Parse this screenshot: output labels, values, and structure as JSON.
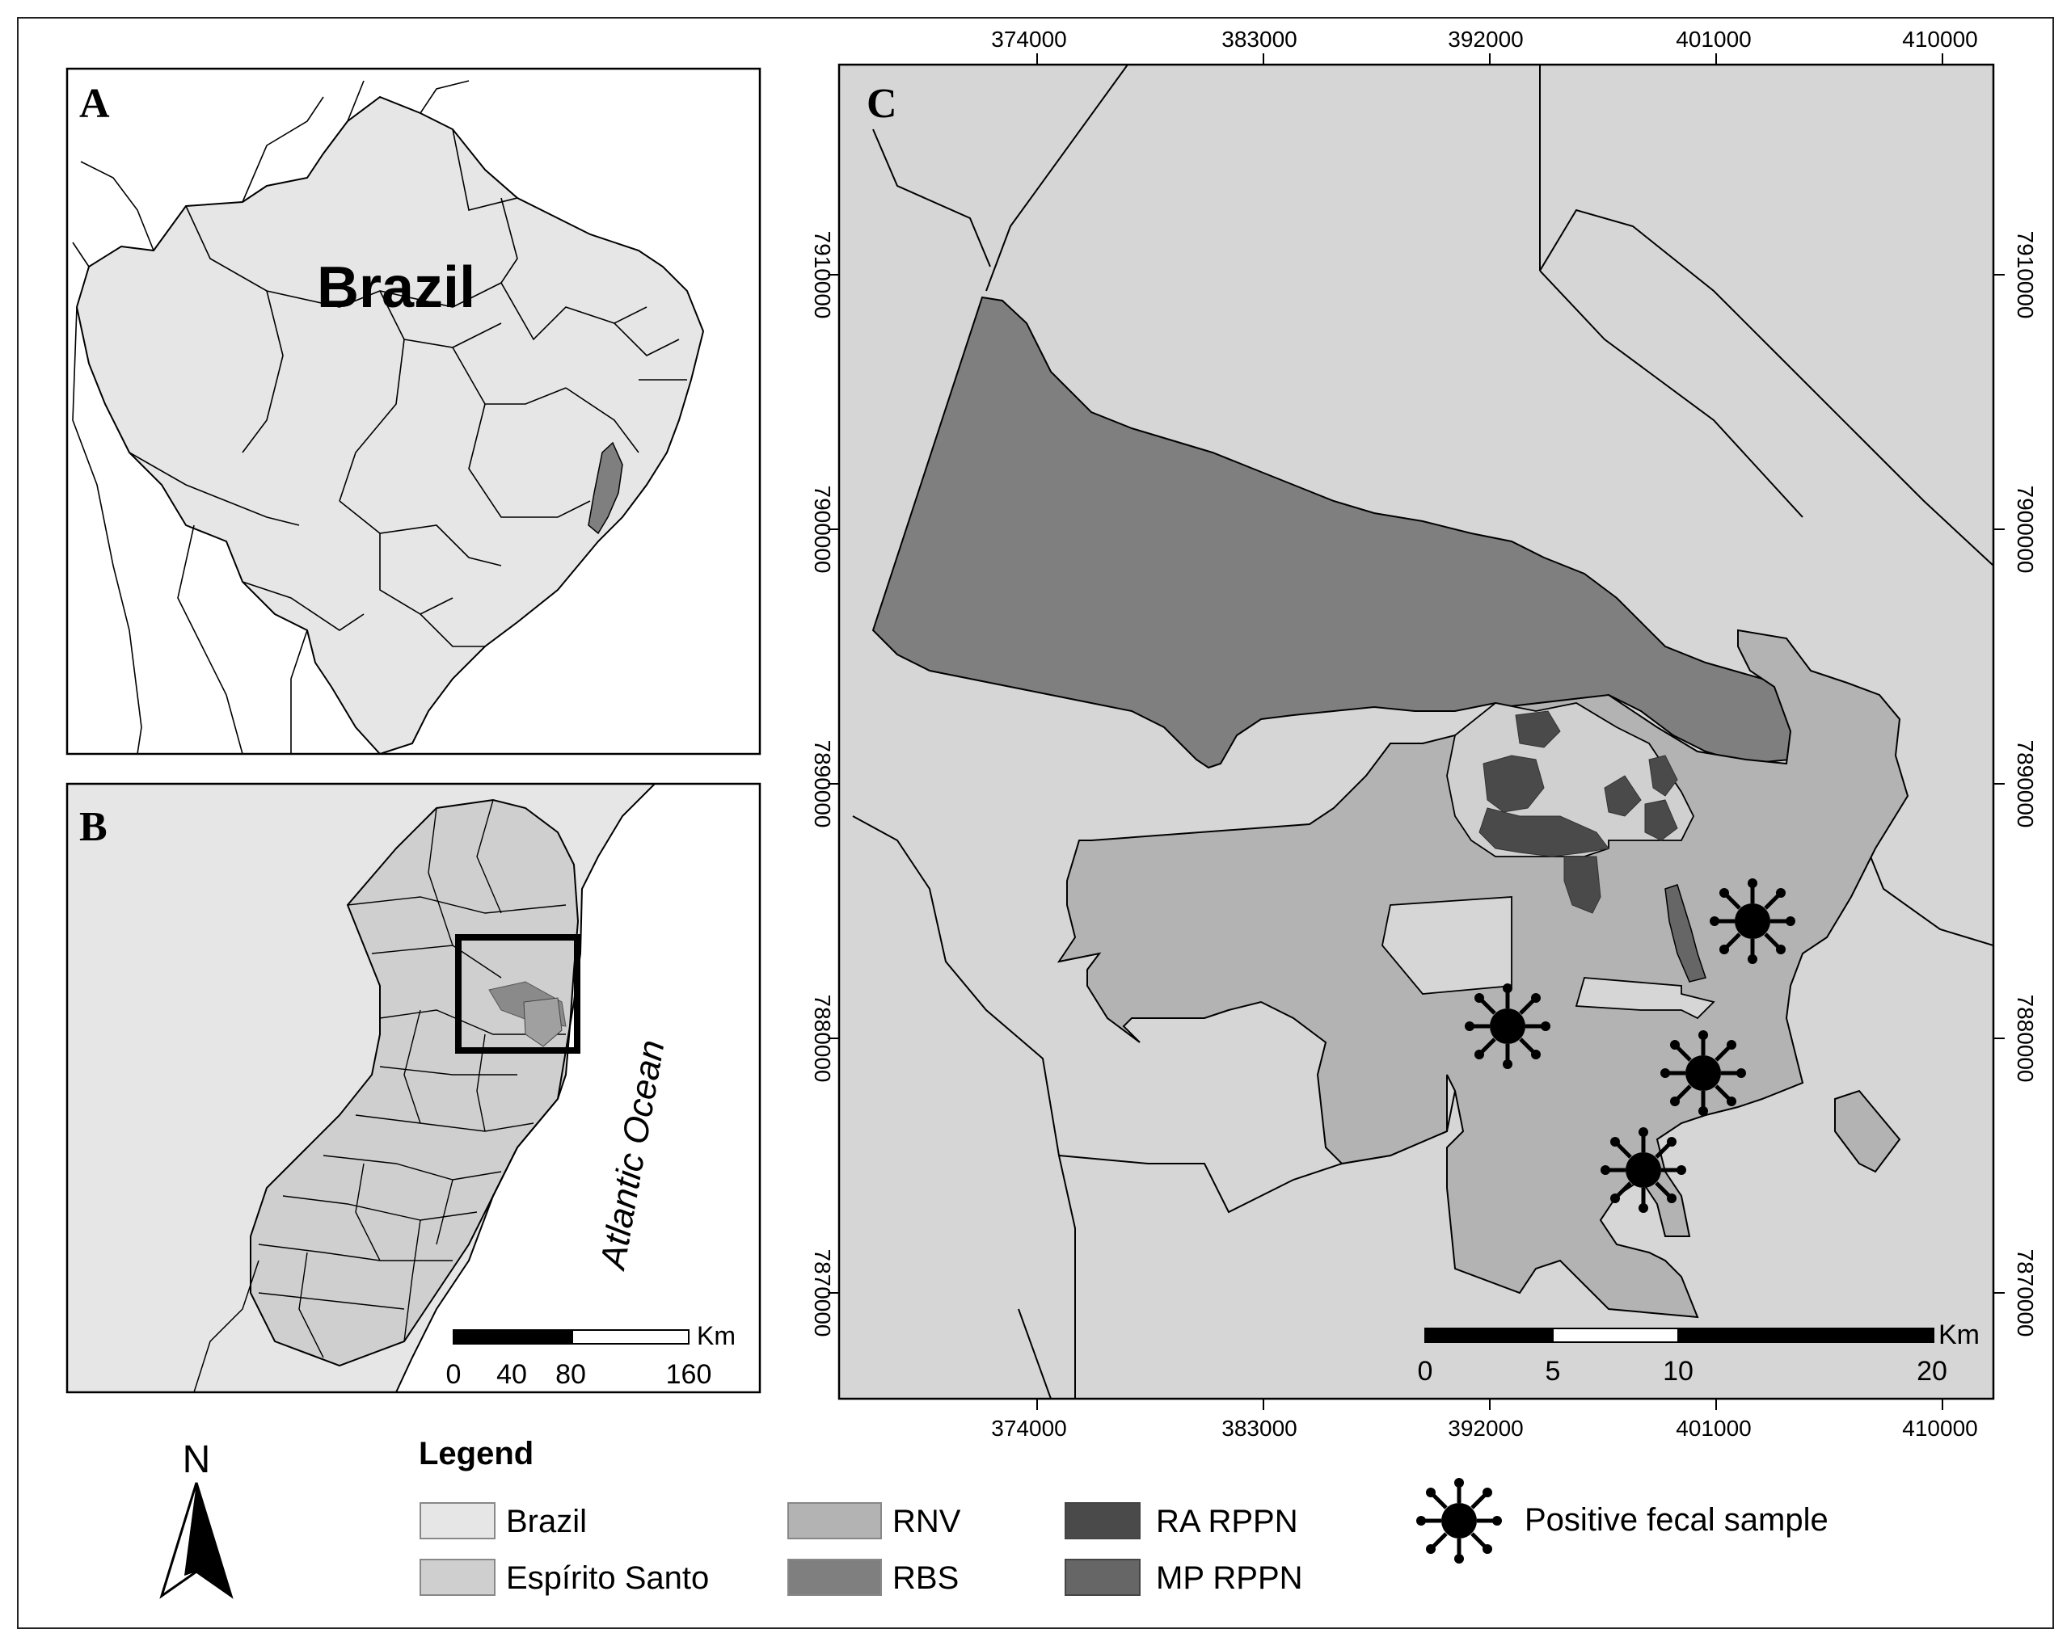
{
  "panels": {
    "a": {
      "letter": "A",
      "country_label": "Brazil"
    },
    "b": {
      "letter": "B",
      "ocean_label": "Atlantic Ocean",
      "scale": {
        "unit": "Km",
        "ticks": [
          "0",
          "40",
          "80",
          "160"
        ]
      }
    },
    "c": {
      "letter": "C",
      "x_ticks": [
        "374000",
        "383000",
        "392000",
        "401000",
        "410000"
      ],
      "y_ticks": [
        "7910000",
        "7900000",
        "7890000",
        "7880000",
        "7870000"
      ],
      "scale": {
        "unit": "Km",
        "ticks": [
          "0",
          "5",
          "10",
          "20"
        ]
      },
      "samples": [
        {
          "label": "Positive fecal sample"
        },
        {
          "label": "Positive fecal sample"
        },
        {
          "label": "Positive fecal sample"
        },
        {
          "label": "Positive fecal sample"
        }
      ]
    }
  },
  "north_arrow": {
    "letter": "N"
  },
  "legend": {
    "title": "Legend",
    "items": [
      {
        "key": "brazil",
        "label": "Brazil",
        "color": "#e6e6e6"
      },
      {
        "key": "es",
        "label": "Espírito Santo",
        "color": "#cfcfcf"
      },
      {
        "key": "rnv",
        "label": "RNV",
        "color": "#b3b3b3"
      },
      {
        "key": "rbs",
        "label": "RBS",
        "color": "#7f7f7f"
      },
      {
        "key": "ra",
        "label": "RA RPPN",
        "color": "#4a4a4a"
      },
      {
        "key": "mp",
        "label": "MP RPPN",
        "color": "#666666"
      }
    ],
    "symbol_label": "Positive fecal sample"
  }
}
